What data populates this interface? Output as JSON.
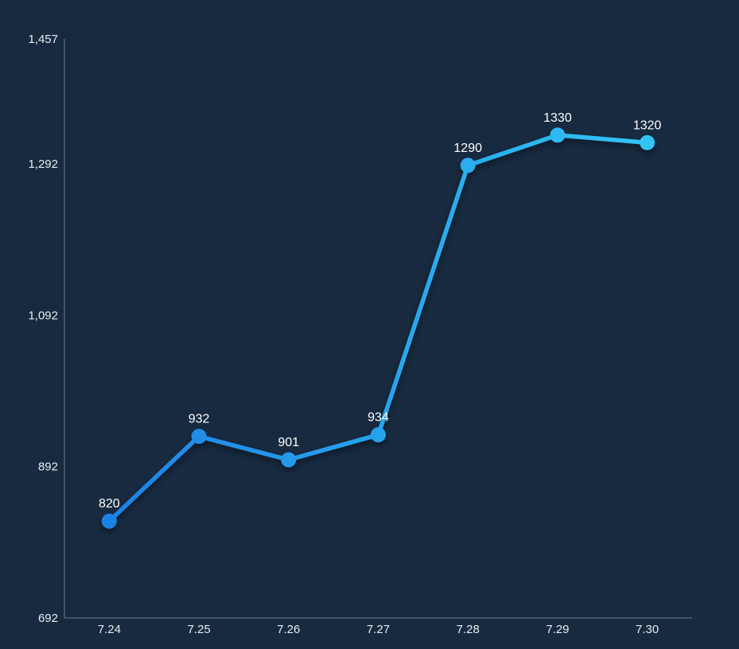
{
  "app": {
    "background_color": "#172A40"
  },
  "chart_data": {
    "type": "line",
    "title": "",
    "xlabel": "",
    "ylabel": "",
    "categories": [
      "7.24",
      "7.25",
      "7.26",
      "7.27",
      "7.28",
      "7.29",
      "7.30"
    ],
    "series": [
      {
        "name": "daily-values",
        "values": [
          820,
          932,
          901,
          934,
          1290,
          1330,
          1320
        ],
        "point_labels": [
          "820",
          "932",
          "901",
          "934",
          "1290",
          "1330",
          "1320"
        ]
      }
    ],
    "ylim": [
      692,
      1457
    ],
    "y_ticks": [
      {
        "value": 692,
        "label": "692"
      },
      {
        "value": 892,
        "label": "892"
      },
      {
        "value": 1092,
        "label": "1,092"
      },
      {
        "value": 1292,
        "label": "1,292"
      },
      {
        "value": 1457,
        "label": "1,457"
      }
    ],
    "grid": false,
    "legend": false,
    "colors": {
      "background": "#172A40",
      "line_gradient_start": "#1E82E6",
      "line_gradient_end": "#31C4F3",
      "axis_line": "#8A97A8",
      "tick_label": "#E8ECF1",
      "value_label": "#FFFFFF"
    }
  }
}
